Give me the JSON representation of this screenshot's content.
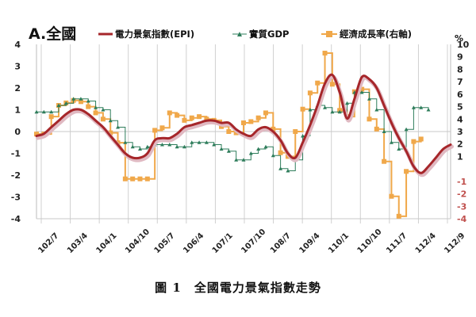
{
  "caption": "圖 1　全國電力景氣指數走勢",
  "chart_data": {
    "type": "line",
    "panel_title": "A.全國",
    "x_tick_labels": [
      "102/7",
      "103/4",
      "104/1",
      "104/10",
      "105/7",
      "106/4",
      "107/1",
      "107/10",
      "108/7",
      "109/4",
      "110/1",
      "110/10",
      "111/7",
      "112/4",
      "112/9"
    ],
    "y_left": {
      "ylim": [
        -4,
        4
      ],
      "ticks": [
        4,
        3,
        2,
        1,
        0,
        -1,
        -2,
        -3,
        -4
      ]
    },
    "y_right": {
      "unit": "%",
      "ylim": [
        -4,
        10
      ],
      "ticks": [
        10,
        9,
        8,
        7,
        6,
        5,
        4,
        3,
        2,
        1,
        -1,
        -2,
        -3,
        -4
      ],
      "negative_color": "#c0504d"
    },
    "grid": "vertical gridlines at x ticks; horizontal line at zero",
    "legend_position": "top",
    "series": [
      {
        "name": "電力景氣指數(EPI)",
        "axis": "left",
        "color": "#a6262a",
        "shadow_color": "#e0b9c2",
        "style": "thick line",
        "points": [
          [
            0,
            -0.2
          ],
          [
            1,
            -0.1
          ],
          [
            2,
            0.2
          ],
          [
            3,
            0.5
          ],
          [
            4,
            0.8
          ],
          [
            5,
            1.0
          ],
          [
            6,
            1.0
          ],
          [
            7,
            0.8
          ],
          [
            8,
            0.5
          ],
          [
            9,
            0.2
          ],
          [
            10,
            -0.2
          ],
          [
            11,
            -0.6
          ],
          [
            12,
            -1.0
          ],
          [
            13,
            -1.2
          ],
          [
            14,
            -1.2
          ],
          [
            15,
            -1.0
          ],
          [
            16,
            -0.4
          ],
          [
            17,
            -0.3
          ],
          [
            18,
            -0.3
          ],
          [
            19,
            -0.1
          ],
          [
            20,
            0.2
          ],
          [
            21,
            0.3
          ],
          [
            22,
            0.4
          ],
          [
            23,
            0.5
          ],
          [
            24,
            0.5
          ],
          [
            25,
            0.4
          ],
          [
            26,
            0.4
          ],
          [
            27,
            0.1
          ],
          [
            28,
            -0.1
          ],
          [
            29,
            -0.2
          ],
          [
            30,
            0.1
          ],
          [
            31,
            0.2
          ],
          [
            32,
            0.0
          ],
          [
            33,
            -0.4
          ],
          [
            34,
            -1.0
          ],
          [
            35,
            -1.2
          ],
          [
            36,
            -0.5
          ],
          [
            37,
            0.3
          ],
          [
            38,
            1.2
          ],
          [
            39,
            2.2
          ],
          [
            40,
            2.6
          ],
          [
            41,
            1.8
          ],
          [
            42,
            0.6
          ],
          [
            43,
            1.5
          ],
          [
            44,
            2.5
          ],
          [
            45,
            2.4
          ],
          [
            46,
            2.0
          ],
          [
            47,
            1.2
          ],
          [
            48,
            0.4
          ],
          [
            49,
            -0.3
          ],
          [
            50,
            -0.9
          ],
          [
            51,
            -1.6
          ],
          [
            52,
            -1.9
          ],
          [
            53,
            -1.6
          ],
          [
            54,
            -1.2
          ],
          [
            55,
            -0.8
          ],
          [
            56,
            -0.6
          ]
        ]
      },
      {
        "name": "實質GDP",
        "axis": "left",
        "color": "#2e7d5b",
        "marker": "triangle",
        "style": "step",
        "points": [
          [
            0,
            0.9
          ],
          [
            1,
            0.9
          ],
          [
            2,
            0.9
          ],
          [
            3,
            1.2
          ],
          [
            4,
            1.3
          ],
          [
            5,
            1.5
          ],
          [
            6,
            1.5
          ],
          [
            7,
            1.4
          ],
          [
            8,
            1.1
          ],
          [
            9,
            1.0
          ],
          [
            10,
            0.5
          ],
          [
            11,
            0.2
          ],
          [
            12,
            -0.5
          ],
          [
            13,
            -0.7
          ],
          [
            14,
            -0.8
          ],
          [
            15,
            -0.7
          ],
          [
            16,
            -0.6
          ],
          [
            17,
            -0.6
          ],
          [
            18,
            -0.6
          ],
          [
            19,
            -0.7
          ],
          [
            20,
            -0.7
          ],
          [
            21,
            -0.5
          ],
          [
            22,
            -0.5
          ],
          [
            23,
            -0.5
          ],
          [
            24,
            -0.6
          ],
          [
            25,
            -0.8
          ],
          [
            26,
            -0.9
          ],
          [
            27,
            -1.3
          ],
          [
            28,
            -1.3
          ],
          [
            29,
            -1.0
          ],
          [
            30,
            -0.8
          ],
          [
            31,
            -0.7
          ],
          [
            32,
            -1.1
          ],
          [
            33,
            -1.7
          ],
          [
            34,
            -1.8
          ],
          [
            35,
            -1.3
          ],
          [
            36,
            -0.2
          ],
          [
            37,
            1.0
          ],
          [
            38,
            1.2
          ],
          [
            39,
            1.1
          ],
          [
            40,
            0.9
          ],
          [
            41,
            0.9
          ],
          [
            42,
            1.3
          ],
          [
            43,
            1.8
          ],
          [
            44,
            1.8
          ],
          [
            45,
            1.5
          ],
          [
            46,
            1.0
          ],
          [
            47,
            0.0
          ],
          [
            48,
            -0.5
          ],
          [
            49,
            -0.8
          ],
          [
            50,
            0.1
          ],
          [
            51,
            1.1
          ],
          [
            52,
            1.1
          ],
          [
            53,
            1.0
          ]
        ]
      },
      {
        "name": "經濟成長率(右軸)",
        "axis": "right",
        "color": "#f0a84a",
        "marker": "square",
        "style": "step",
        "points": [
          [
            0,
            2.8
          ],
          [
            1,
            2.8
          ],
          [
            2,
            4.2
          ],
          [
            3,
            5.1
          ],
          [
            4,
            5.3
          ],
          [
            5,
            5.5
          ],
          [
            6,
            5.4
          ],
          [
            7,
            5.0
          ],
          [
            8,
            4.5
          ],
          [
            9,
            4.0
          ],
          [
            10,
            2.9
          ],
          [
            11,
            2.1
          ],
          [
            12,
            -0.8
          ],
          [
            13,
            -0.8
          ],
          [
            14,
            -0.8
          ],
          [
            15,
            -0.8
          ],
          [
            16,
            3.1
          ],
          [
            17,
            3.3
          ],
          [
            18,
            4.5
          ],
          [
            19,
            4.3
          ],
          [
            20,
            3.9
          ],
          [
            21,
            4.1
          ],
          [
            22,
            4.2
          ],
          [
            23,
            4.0
          ],
          [
            24,
            3.9
          ],
          [
            25,
            3.4
          ],
          [
            26,
            3.0
          ],
          [
            27,
            2.9
          ],
          [
            28,
            3.7
          ],
          [
            29,
            3.8
          ],
          [
            30,
            4.1
          ],
          [
            31,
            4.5
          ],
          [
            32,
            3.2
          ],
          [
            33,
            1.3
          ],
          [
            34,
            1.0
          ],
          [
            35,
            3.0
          ],
          [
            36,
            4.8
          ],
          [
            37,
            6.1
          ],
          [
            38,
            6.9
          ],
          [
            39,
            9.3
          ],
          [
            40,
            6.8
          ],
          [
            41,
            4.7
          ],
          [
            42,
            4.2
          ],
          [
            43,
            6.2
          ],
          [
            44,
            6.4
          ],
          [
            45,
            4.0
          ],
          [
            46,
            3.2
          ],
          [
            47,
            0.6
          ],
          [
            48,
            -2.2
          ],
          [
            49,
            -3.8
          ],
          [
            50,
            -0.2
          ],
          [
            51,
            2.2
          ],
          [
            52,
            2.4
          ]
        ]
      }
    ]
  }
}
